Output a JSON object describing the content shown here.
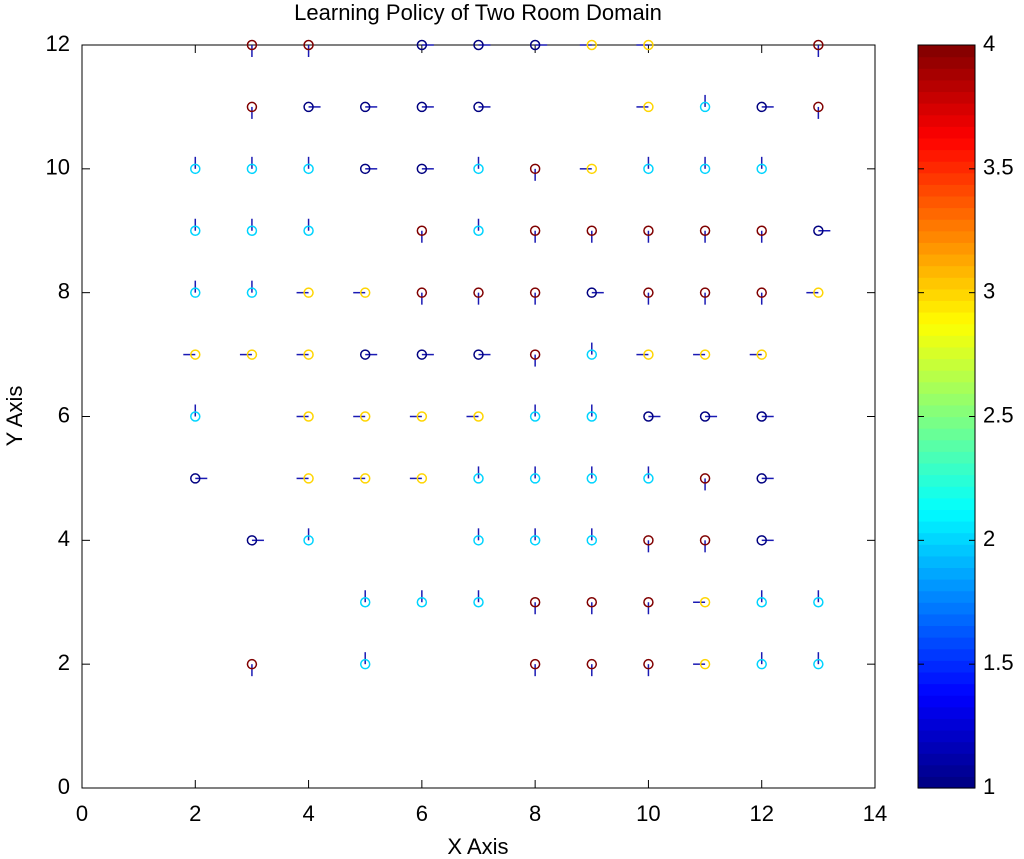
{
  "chart_data": {
    "type": "scatter",
    "title": "Learning Policy of Two Room Domain",
    "x_label": "X Axis",
    "y_label": "Y Axis",
    "x": [
      3,
      4,
      6,
      7,
      8,
      9,
      10,
      13,
      3,
      4,
      5,
      6,
      7,
      10,
      11,
      12,
      13,
      2,
      3,
      4,
      5,
      6,
      7,
      8,
      9,
      10,
      11,
      12,
      2,
      3,
      4,
      6,
      7,
      8,
      9,
      10,
      11,
      12,
      13,
      2,
      3,
      4,
      5,
      6,
      7,
      8,
      9,
      10,
      11,
      12,
      13,
      2,
      3,
      4,
      5,
      6,
      7,
      8,
      9,
      10,
      11,
      12,
      2,
      4,
      5,
      6,
      7,
      8,
      9,
      10,
      11,
      12,
      2,
      4,
      5,
      6,
      7,
      8,
      9,
      10,
      11,
      12,
      3,
      4,
      7,
      8,
      9,
      10,
      11,
      12,
      5,
      6,
      7,
      8,
      9,
      10,
      11,
      12,
      13,
      3,
      5,
      8,
      9,
      10,
      11,
      12,
      13
    ],
    "y": [
      12,
      12,
      12,
      12,
      12,
      12,
      12,
      12,
      11,
      11,
      11,
      11,
      11,
      11,
      11,
      11,
      11,
      10,
      10,
      10,
      10,
      10,
      10,
      10,
      10,
      10,
      10,
      10,
      9,
      9,
      9,
      9,
      9,
      9,
      9,
      9,
      9,
      9,
      9,
      8,
      8,
      8,
      8,
      8,
      8,
      8,
      8,
      8,
      8,
      8,
      8,
      7,
      7,
      7,
      7,
      7,
      7,
      7,
      7,
      7,
      7,
      7,
      6,
      6,
      6,
      6,
      6,
      6,
      6,
      6,
      6,
      6,
      5,
      5,
      5,
      5,
      5,
      5,
      5,
      5,
      5,
      5,
      4,
      4,
      4,
      4,
      4,
      4,
      4,
      4,
      3,
      3,
      3,
      3,
      3,
      3,
      3,
      3,
      3,
      2,
      2,
      2,
      2,
      2,
      2,
      2,
      2
    ],
    "values": [
      4,
      4,
      1,
      1,
      1,
      3,
      3,
      4,
      4,
      1,
      1,
      1,
      1,
      3,
      2,
      1,
      4,
      2,
      2,
      2,
      1,
      1,
      2,
      4,
      3,
      2,
      2,
      2,
      2,
      2,
      2,
      4,
      2,
      4,
      4,
      4,
      4,
      4,
      1,
      2,
      2,
      3,
      3,
      4,
      4,
      4,
      1,
      4,
      4,
      4,
      3,
      3,
      3,
      3,
      1,
      1,
      1,
      4,
      2,
      3,
      3,
      3,
      2,
      3,
      3,
      3,
      3,
      2,
      2,
      1,
      1,
      1,
      1,
      3,
      3,
      3,
      2,
      2,
      2,
      2,
      4,
      1,
      1,
      2,
      2,
      2,
      2,
      4,
      4,
      1,
      2,
      2,
      2,
      4,
      4,
      4,
      3,
      2,
      2,
      4,
      2,
      4,
      4,
      4,
      3,
      2,
      2
    ],
    "xlim": [
      0,
      14
    ],
    "ylim": [
      0,
      12
    ],
    "xticks": [
      0,
      2,
      4,
      6,
      8,
      10,
      12,
      14
    ],
    "yticks": [
      0,
      2,
      4,
      6,
      8,
      10,
      12
    ],
    "colormap": "jet",
    "clim": [
      1,
      4
    ],
    "cticks": [
      1,
      1.5,
      2,
      2.5,
      3,
      3.5,
      4
    ],
    "arrow_color": "#1a1ab4"
  }
}
